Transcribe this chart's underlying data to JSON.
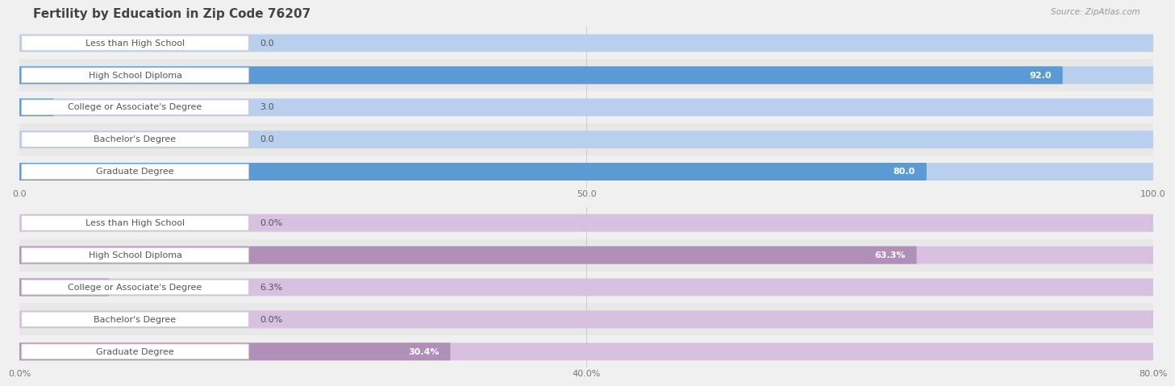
{
  "title": "Fertility by Education in Zip Code 76207",
  "source": "Source: ZipAtlas.com",
  "top_chart": {
    "categories": [
      "Less than High School",
      "High School Diploma",
      "College or Associate's Degree",
      "Bachelor's Degree",
      "Graduate Degree"
    ],
    "values": [
      0.0,
      92.0,
      3.0,
      0.0,
      80.0
    ],
    "bar_color_full": "#5b9bd5",
    "bar_color_light": "#b8d0ed",
    "xlim_max": 100,
    "xticks": [
      0.0,
      50.0,
      100.0
    ],
    "value_labels": [
      "0.0",
      "92.0",
      "3.0",
      "0.0",
      "80.0"
    ],
    "threshold_pct": 10
  },
  "bottom_chart": {
    "categories": [
      "Less than High School",
      "High School Diploma",
      "College or Associate's Degree",
      "Bachelor's Degree",
      "Graduate Degree"
    ],
    "values": [
      0.0,
      63.3,
      6.3,
      0.0,
      30.4
    ],
    "bar_color_full": "#b090b8",
    "bar_color_light": "#d8c0e0",
    "xlim_max": 80,
    "xticks": [
      0.0,
      40.0,
      80.0
    ],
    "value_labels": [
      "0.0%",
      "63.3%",
      "6.3%",
      "0.0%",
      "30.4%"
    ],
    "threshold_pct": 10
  },
  "bar_height": 0.55,
  "label_fontsize": 8,
  "value_fontsize": 8,
  "title_fontsize": 11,
  "tick_fontsize": 8,
  "fig_bg": "#f0f0f0",
  "row_colors": [
    "#f0f0f0",
    "#e8e8e8"
  ],
  "label_box_facecolor": "#ffffff",
  "label_box_edgecolor": "#cccccc",
  "label_text_color": "#555555",
  "grid_color": "#cccccc",
  "tick_color": "#777777",
  "title_color": "#444444",
  "source_color": "#999999",
  "value_inside_color": "#ffffff",
  "value_outside_color": "#555555"
}
